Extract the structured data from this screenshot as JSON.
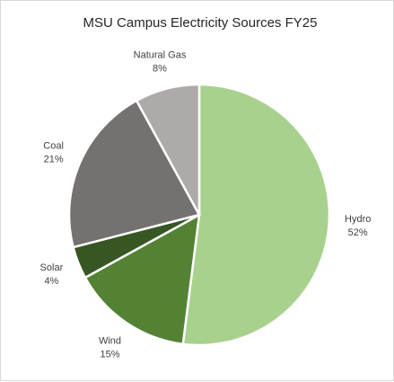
{
  "chart_data": {
    "type": "pie",
    "title": "MSU Campus Electricity Sources FY25",
    "slices": [
      {
        "label": "Hydro",
        "value": 52,
        "percent_label": "52%",
        "color": "#a9d18e"
      },
      {
        "label": "Wind",
        "value": 15,
        "percent_label": "15%",
        "color": "#548235"
      },
      {
        "label": "Solar",
        "value": 4,
        "percent_label": "4%",
        "color": "#375623"
      },
      {
        "label": "Coal",
        "value": 21,
        "percent_label": "21%",
        "color": "#767171"
      },
      {
        "label": "Natural Gas",
        "value": 8,
        "percent_label": "8%",
        "color": "#aeaaaa"
      }
    ],
    "start_angle_deg": 0,
    "direction": "clockwise",
    "legend": "none",
    "data_labels": "outside"
  }
}
